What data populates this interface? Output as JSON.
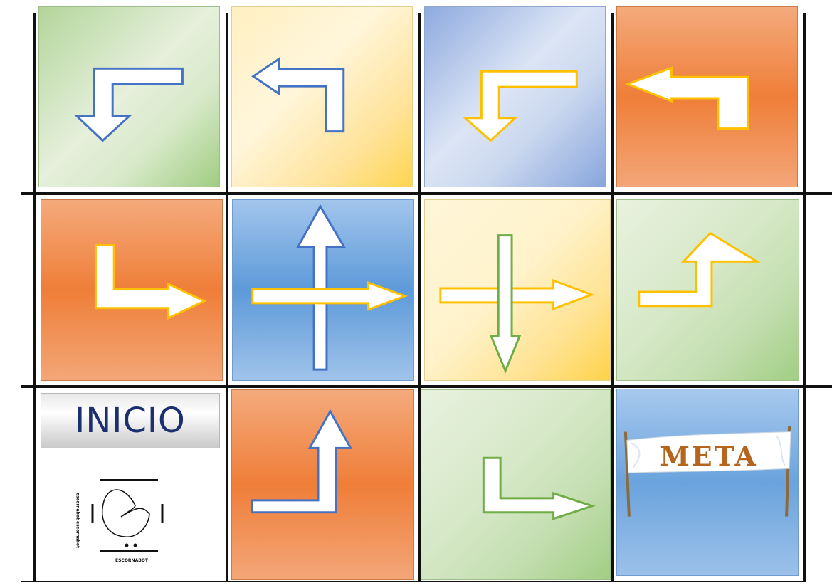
{
  "board": {
    "start_label": "INICIO",
    "goal_label": "META",
    "robot_logo": {
      "name": "ESCORNABOT",
      "side_text": "escornabot escornabot"
    }
  },
  "tiles": [
    {
      "row": 1,
      "col": 1,
      "color": "green",
      "arrow": "turn-down-left",
      "arrow_outline": "#4472c4"
    },
    {
      "row": 1,
      "col": 2,
      "color": "yellow",
      "arrow": "turn-up-left",
      "arrow_outline": "#4472c4"
    },
    {
      "row": 1,
      "col": 3,
      "color": "light-blue",
      "arrow": "turn-down-left",
      "arrow_outline": "#ffc000"
    },
    {
      "row": 1,
      "col": 4,
      "color": "orange",
      "arrow": "turn-up-left",
      "arrow_outline": "#ffc000"
    },
    {
      "row": 2,
      "col": 1,
      "color": "orange",
      "arrow": "turn-right",
      "arrow_outline": "#ffc000"
    },
    {
      "row": 2,
      "col": 2,
      "color": "blue",
      "arrow": "cross-up-right",
      "arrow_outline": "#ffc000"
    },
    {
      "row": 2,
      "col": 3,
      "color": "yellow",
      "arrow": "cross-down-right",
      "arrow_outline": "#70ad47"
    },
    {
      "row": 2,
      "col": 4,
      "color": "green",
      "arrow": "turn-up-right",
      "arrow_outline": "#ffc000"
    },
    {
      "row": 3,
      "col": 1,
      "color": "white",
      "arrow": "start"
    },
    {
      "row": 3,
      "col": 2,
      "color": "orange",
      "arrow": "turn-up",
      "arrow_outline": "#4472c4"
    },
    {
      "row": 3,
      "col": 3,
      "color": "green",
      "arrow": "turn-right",
      "arrow_outline": "#70ad47"
    },
    {
      "row": 3,
      "col": 4,
      "color": "blue",
      "arrow": "goal"
    }
  ]
}
